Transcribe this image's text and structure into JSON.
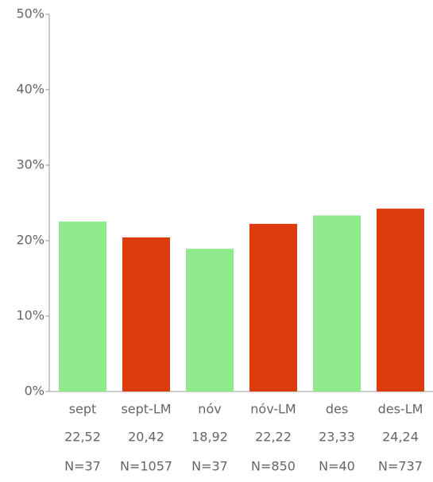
{
  "chart_data": {
    "type": "bar",
    "categories": [
      "sept",
      "sept-LM",
      "nóv",
      "nóv-LM",
      "des",
      "des-LM"
    ],
    "values": [
      22.52,
      20.42,
      18.92,
      22.22,
      23.33,
      24.24
    ],
    "value_labels": [
      "22,52",
      "20,42",
      "18,92",
      "22,22",
      "23,33",
      "24,24"
    ],
    "n_labels": [
      "N=37",
      "N=1057",
      "N=37",
      "N=850",
      "N=40",
      "N=737"
    ],
    "colors": [
      "#90ea8c",
      "#dd3a10",
      "#90ea8c",
      "#dd3a10",
      "#90ea8c",
      "#dd3a10"
    ],
    "ylim": [
      0,
      50
    ],
    "yticks": [
      {
        "value": 0,
        "label": "0%"
      },
      {
        "value": 10,
        "label": "10%"
      },
      {
        "value": 20,
        "label": "20%"
      },
      {
        "value": 30,
        "label": "30%"
      },
      {
        "value": 40,
        "label": "40%"
      },
      {
        "value": 50,
        "label": "50%"
      }
    ]
  }
}
